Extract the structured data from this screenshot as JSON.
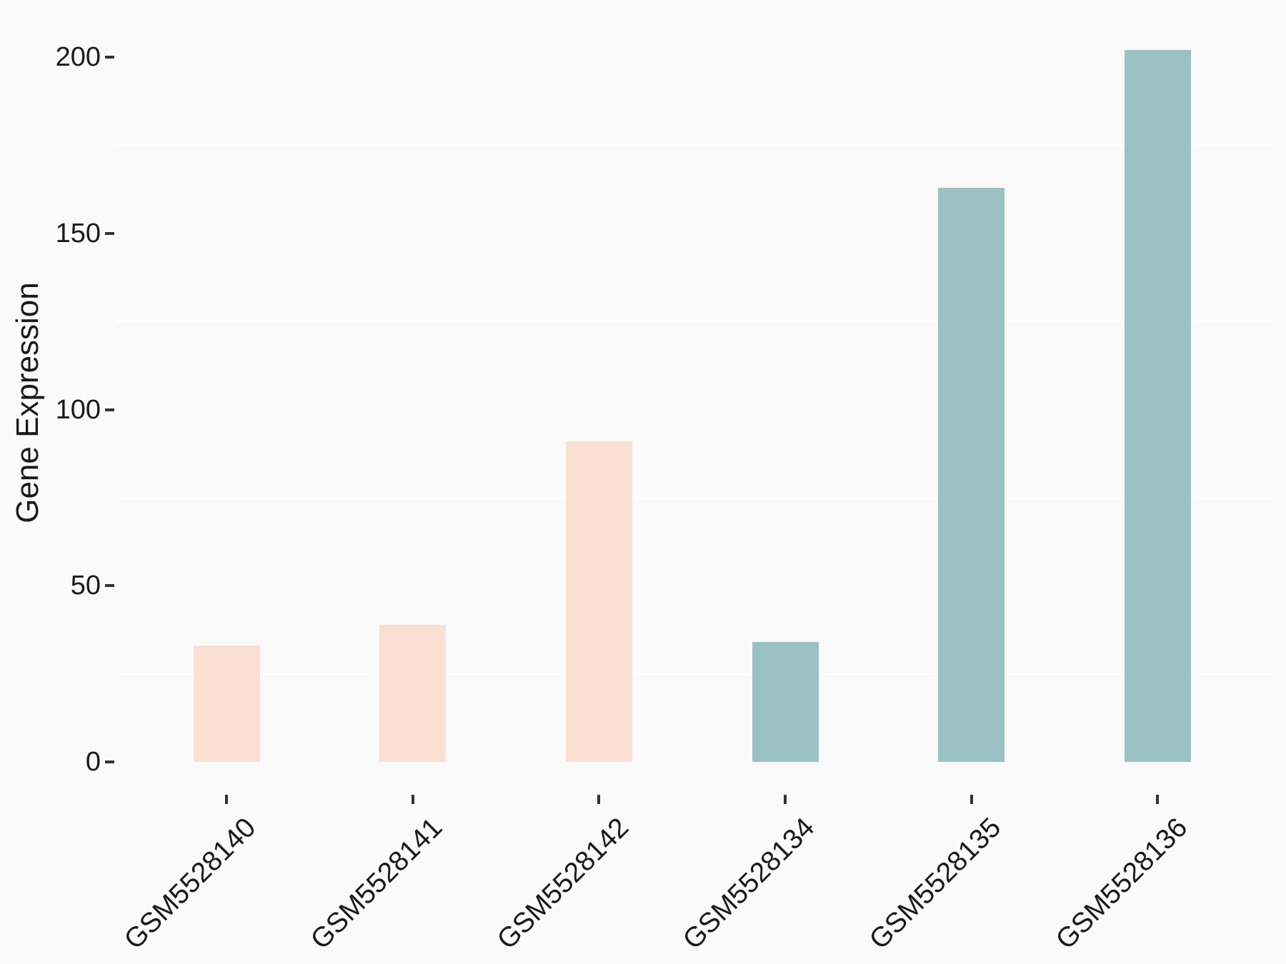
{
  "chart_data": {
    "type": "bar",
    "title": "",
    "ylabel": "Gene Expression",
    "xlabel": "",
    "categories": [
      "GSM5528140",
      "GSM5528141",
      "GSM5528142",
      "GSM5528134",
      "GSM5528135",
      "GSM5528136"
    ],
    "values": [
      33,
      39,
      91,
      34,
      163,
      202
    ],
    "bar_colors": [
      "#fcdfd3",
      "#fcdfd3",
      "#fcdfd3",
      "#9ac2c5",
      "#9ac2c5",
      "#9ac2c5"
    ],
    "y_ticks": [
      0,
      50,
      100,
      150,
      200
    ],
    "minor_gridlines": [
      25,
      75,
      125,
      175
    ],
    "ylim": [
      -10,
      212
    ],
    "legend": "none",
    "grid": "white minor gridlines only, on light gray panel",
    "colors": {
      "background": "#fafafa",
      "gridline": "#ffffff",
      "tick": "#333333",
      "text": "#1a1a1a",
      "group_pink": "#fcdfd3",
      "group_teal": "#9ac2c5"
    }
  }
}
